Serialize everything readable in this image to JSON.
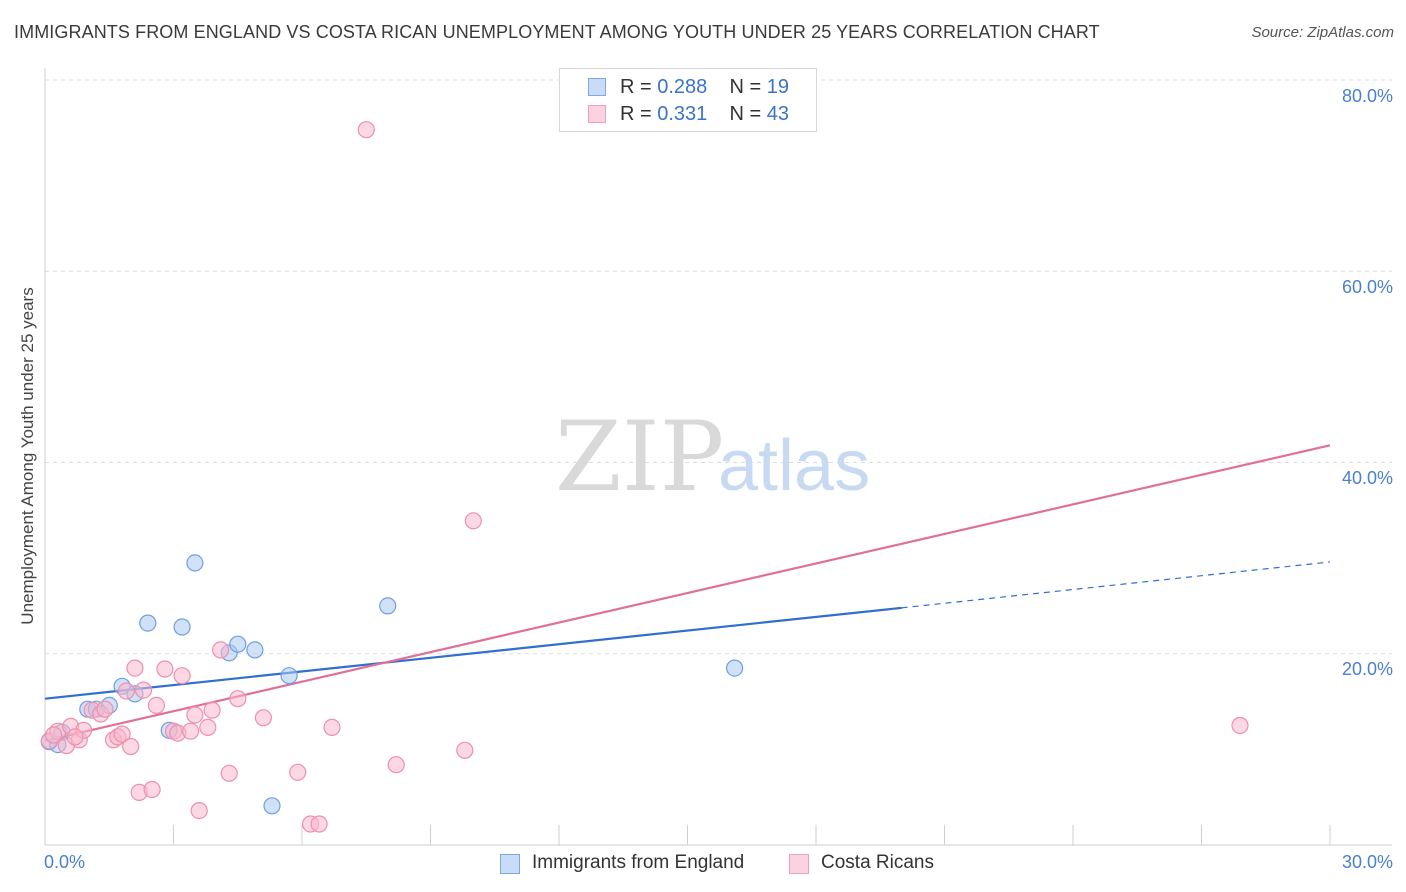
{
  "title": "IMMIGRANTS FROM ENGLAND VS COSTA RICAN UNEMPLOYMENT AMONG YOUTH UNDER 25 YEARS CORRELATION CHART",
  "source": "Source: ZipAtlas.com",
  "watermark": {
    "zip": "ZIP",
    "atlas": "atlas"
  },
  "legend": {
    "rows": [
      {
        "r_label": "R =",
        "r_value": "0.288",
        "n_label": "N =",
        "n_value": "19",
        "color": "#a9c8f3"
      },
      {
        "r_label": "R =",
        "r_value": "0.331",
        "n_label": "N =",
        "n_value": "43",
        "color": "#f7b8cc"
      }
    ]
  },
  "bottom_legend": [
    {
      "label": "Immigrants from England",
      "color": "#a9c8f3"
    },
    {
      "label": "Costa Ricans",
      "color": "#f7b8cc"
    }
  ],
  "chart_data": {
    "type": "scatter",
    "title": "IMMIGRANTS FROM ENGLAND VS COSTA RICAN UNEMPLOYMENT AMONG YOUTH UNDER 25 YEARS CORRELATION CHART",
    "xlabel": "",
    "ylabel": "Unemployment Among Youth under 25 years",
    "xlim": [
      0,
      30
    ],
    "ylim": [
      0,
      80
    ],
    "x_tick_labels": [
      "0.0%",
      "30.0%"
    ],
    "y_tick_labels": [
      "80.0%",
      "60.0%",
      "40.0%",
      "20.0%"
    ],
    "y_ticks": [
      80,
      60,
      40,
      20
    ],
    "grid": true,
    "series": [
      {
        "name": "Immigrants from England",
        "color": "#a9c8f3",
        "edge": "#6f9fe0",
        "line_color": "#2f6fd0",
        "points": [
          [
            0.1,
            10.8
          ],
          [
            0.3,
            10.5
          ],
          [
            0.4,
            11.8
          ],
          [
            1.0,
            14.2
          ],
          [
            1.2,
            14.2
          ],
          [
            1.5,
            14.6
          ],
          [
            1.8,
            16.6
          ],
          [
            2.1,
            15.8
          ],
          [
            2.4,
            23.2
          ],
          [
            2.9,
            12.0
          ],
          [
            3.2,
            22.8
          ],
          [
            3.5,
            29.5
          ],
          [
            4.3,
            20.1
          ],
          [
            4.5,
            21.0
          ],
          [
            4.9,
            20.4
          ],
          [
            5.3,
            4.1
          ],
          [
            5.7,
            17.7
          ],
          [
            8.0,
            25.0
          ],
          [
            16.1,
            18.5
          ]
        ],
        "trend": {
          "x0": 0,
          "y0": 15.3,
          "x1": 20.0,
          "y1": 24.8,
          "dashed_to_x": 30,
          "dashed_to_y": 29.6
        }
      },
      {
        "name": "Costa Ricans",
        "color": "#f7b8cc",
        "edge": "#ee8fae",
        "line_color": "#e07098",
        "points": [
          [
            0.1,
            10.9
          ],
          [
            0.3,
            11.9
          ],
          [
            0.5,
            10.4
          ],
          [
            0.6,
            12.4
          ],
          [
            0.8,
            11.0
          ],
          [
            0.9,
            12.0
          ],
          [
            1.1,
            14.1
          ],
          [
            1.3,
            13.7
          ],
          [
            1.4,
            14.2
          ],
          [
            1.6,
            11.0
          ],
          [
            1.7,
            11.3
          ],
          [
            1.8,
            11.6
          ],
          [
            1.9,
            16.1
          ],
          [
            2.0,
            10.3
          ],
          [
            2.1,
            18.5
          ],
          [
            2.2,
            5.5
          ],
          [
            2.3,
            16.2
          ],
          [
            2.5,
            5.8
          ],
          [
            2.6,
            14.6
          ],
          [
            2.8,
            18.4
          ],
          [
            3.0,
            11.9
          ],
          [
            3.1,
            11.7
          ],
          [
            3.2,
            17.7
          ],
          [
            3.4,
            11.9
          ],
          [
            3.5,
            13.6
          ],
          [
            3.6,
            3.6
          ],
          [
            3.8,
            12.3
          ],
          [
            3.9,
            14.1
          ],
          [
            4.1,
            20.4
          ],
          [
            4.3,
            7.5
          ],
          [
            4.5,
            15.3
          ],
          [
            5.1,
            13.3
          ],
          [
            5.9,
            7.6
          ],
          [
            6.2,
            2.2
          ],
          [
            6.4,
            2.2
          ],
          [
            6.7,
            12.3
          ],
          [
            7.5,
            74.8
          ],
          [
            8.2,
            8.4
          ],
          [
            9.8,
            9.9
          ],
          [
            10.0,
            33.9
          ],
          [
            27.9,
            12.5
          ],
          [
            0.2,
            11.5
          ],
          [
            0.7,
            11.3
          ]
        ],
        "trend": {
          "x0": 0,
          "y0": 10.9,
          "x1": 30,
          "y1": 41.8
        }
      }
    ]
  }
}
